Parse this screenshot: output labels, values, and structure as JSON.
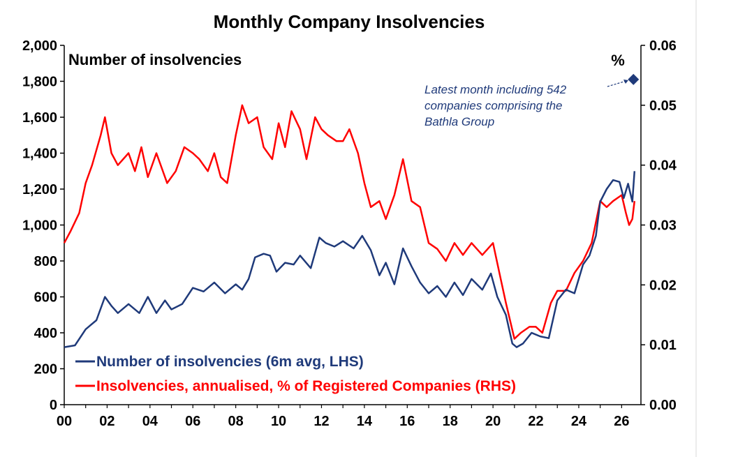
{
  "chart_data": {
    "type": "line",
    "title": "Monthly Company Insolvencies",
    "left_axis_label": "Number of insolvencies",
    "right_axis_label": "%",
    "x_ticks": [
      "00",
      "02",
      "04",
      "06",
      "08",
      "10",
      "12",
      "14",
      "16",
      "18",
      "20",
      "22",
      "24",
      "26"
    ],
    "y_left_ticks": [
      "0",
      "200",
      "400",
      "600",
      "800",
      "1,000",
      "1,200",
      "1,400",
      "1,600",
      "1,800",
      "2,000"
    ],
    "y_right_ticks": [
      "0.00",
      "0.01",
      "0.02",
      "0.03",
      "0.04",
      "0.05",
      "0.06"
    ],
    "xlim": [
      2000,
      2026.9
    ],
    "ylim_left": [
      0,
      2000
    ],
    "ylim_right": [
      0,
      0.06
    ],
    "grid": false,
    "legend_position": "bottom-left",
    "annotation": {
      "lines": [
        "Latest month including 542",
        "companies comprising the",
        "Bathla Group"
      ],
      "point": {
        "x": 2026.55,
        "y": 0.0543,
        "marker": "diamond",
        "axis": "right"
      }
    },
    "series": [
      {
        "name": "Number of insolvencies (6m avg, LHS)",
        "axis": "left",
        "color": "#1f3a7a",
        "x": [
          2000.0,
          2000.5,
          2001.0,
          2001.5,
          2001.9,
          2002.2,
          2002.5,
          2003.0,
          2003.5,
          2003.9,
          2004.3,
          2004.7,
          2005.0,
          2005.5,
          2006.0,
          2006.5,
          2007.0,
          2007.5,
          2008.0,
          2008.3,
          2008.6,
          2008.9,
          2009.3,
          2009.6,
          2009.9,
          2010.3,
          2010.7,
          2011.0,
          2011.5,
          2011.9,
          2012.2,
          2012.6,
          2013.0,
          2013.5,
          2013.9,
          2014.3,
          2014.7,
          2015.0,
          2015.4,
          2015.8,
          2016.2,
          2016.6,
          2017.0,
          2017.4,
          2017.8,
          2018.2,
          2018.6,
          2019.0,
          2019.5,
          2019.9,
          2020.2,
          2020.6,
          2020.9,
          2021.1,
          2021.4,
          2021.8,
          2022.2,
          2022.6,
          2023.0,
          2023.4,
          2023.8,
          2024.2,
          2024.5,
          2024.8,
          2025.0,
          2025.3,
          2025.6,
          2025.9,
          2026.1,
          2026.3,
          2026.5,
          2026.6
        ],
        "values": [
          320,
          330,
          420,
          470,
          600,
          550,
          510,
          560,
          510,
          600,
          510,
          580,
          530,
          560,
          650,
          630,
          680,
          620,
          670,
          640,
          700,
          820,
          840,
          830,
          740,
          790,
          780,
          830,
          760,
          930,
          900,
          880,
          910,
          870,
          940,
          860,
          720,
          790,
          670,
          870,
          770,
          680,
          620,
          660,
          600,
          680,
          610,
          700,
          640,
          730,
          600,
          500,
          340,
          320,
          340,
          400,
          380,
          370,
          580,
          640,
          620,
          780,
          830,
          940,
          1130,
          1200,
          1250,
          1240,
          1150,
          1230,
          1130,
          1300
        ]
      },
      {
        "name": "Insolvencies, annualised, % of Registered Companies (RHS)",
        "axis": "right",
        "color": "#ff0000",
        "x": [
          2000.0,
          2000.3,
          2000.7,
          2001.0,
          2001.3,
          2001.7,
          2001.9,
          2002.2,
          2002.5,
          2003.0,
          2003.3,
          2003.6,
          2003.9,
          2004.3,
          2004.8,
          2005.2,
          2005.6,
          2006.0,
          2006.3,
          2006.7,
          2007.0,
          2007.3,
          2007.6,
          2008.0,
          2008.3,
          2008.6,
          2009.0,
          2009.3,
          2009.7,
          2010.0,
          2010.3,
          2010.6,
          2011.0,
          2011.3,
          2011.7,
          2012.0,
          2012.3,
          2012.7,
          2013.0,
          2013.3,
          2013.7,
          2014.0,
          2014.3,
          2014.7,
          2015.0,
          2015.4,
          2015.8,
          2016.2,
          2016.6,
          2017.0,
          2017.4,
          2017.8,
          2018.2,
          2018.6,
          2019.0,
          2019.5,
          2020.0,
          2020.3,
          2020.6,
          2021.0,
          2021.3,
          2021.7,
          2022.0,
          2022.3,
          2022.7,
          2023.0,
          2023.4,
          2023.8,
          2024.2,
          2024.6,
          2025.0,
          2025.3,
          2025.6,
          2026.0,
          2026.2,
          2026.35,
          2026.5,
          2026.6
        ],
        "values": [
          0.027,
          0.029,
          0.032,
          0.037,
          0.04,
          0.045,
          0.048,
          0.042,
          0.04,
          0.042,
          0.039,
          0.043,
          0.038,
          0.042,
          0.037,
          0.039,
          0.043,
          0.042,
          0.041,
          0.039,
          0.042,
          0.038,
          0.037,
          0.045,
          0.05,
          0.047,
          0.048,
          0.043,
          0.041,
          0.047,
          0.043,
          0.049,
          0.046,
          0.041,
          0.048,
          0.046,
          0.045,
          0.044,
          0.044,
          0.046,
          0.042,
          0.037,
          0.033,
          0.034,
          0.031,
          0.035,
          0.041,
          0.034,
          0.033,
          0.027,
          0.026,
          0.024,
          0.027,
          0.025,
          0.027,
          0.025,
          0.027,
          0.022,
          0.017,
          0.011,
          0.012,
          0.013,
          0.013,
          0.012,
          0.017,
          0.019,
          0.019,
          0.022,
          0.024,
          0.027,
          0.034,
          0.033,
          0.034,
          0.035,
          0.032,
          0.03,
          0.031,
          0.034
        ]
      }
    ]
  }
}
